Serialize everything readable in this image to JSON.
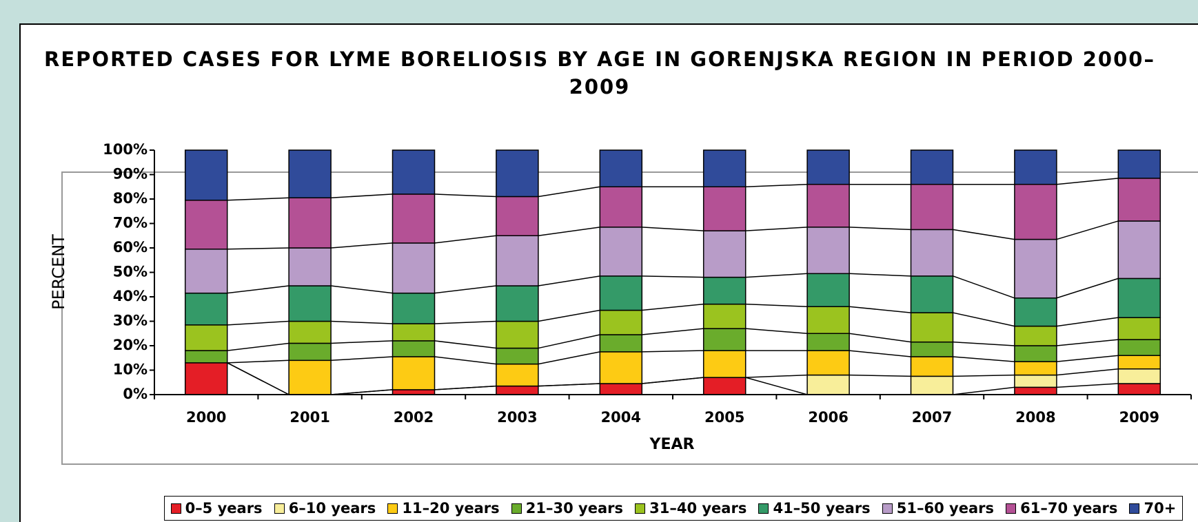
{
  "chart_data": {
    "type": "stacked-bar",
    "title": "REPORTED CASES FOR LYME BORELIOSIS BY AGE IN GORENJSKA REGION IN PERIOD 2000–2009",
    "x_label": "YEAR",
    "y_label": "PERCENT",
    "categories": [
      "2000",
      "2001",
      "2002",
      "2003",
      "2004",
      "2005",
      "2006",
      "2007",
      "2008",
      "2009"
    ],
    "series": [
      {
        "name": "0–5 years",
        "color": "#e41e26",
        "values": [
          13,
          0,
          2,
          3.5,
          4.5,
          7,
          0,
          0,
          3,
          4.5
        ]
      },
      {
        "name": "6–10 years",
        "color": "#f8ee9a",
        "values": [
          0,
          0,
          0,
          0,
          0,
          0,
          8,
          7.5,
          5,
          6
        ]
      },
      {
        "name": "11–20 years",
        "color": "#fdcb14",
        "values": [
          0,
          14,
          13.5,
          9,
          13,
          11,
          10,
          8,
          5.5,
          5.5
        ]
      },
      {
        "name": "21–30 years",
        "color": "#6aac2c",
        "values": [
          5,
          7,
          6.5,
          6.5,
          7,
          9,
          7,
          6,
          6.5,
          6.5
        ]
      },
      {
        "name": "31–40 years",
        "color": "#9bc31f",
        "values": [
          10.5,
          9,
          7,
          11,
          10,
          10,
          11,
          12,
          8,
          9
        ]
      },
      {
        "name": "41–50 years",
        "color": "#349a68",
        "values": [
          13,
          14.5,
          12.5,
          14.5,
          14,
          11,
          13.5,
          15,
          11.5,
          16
        ]
      },
      {
        "name": "51–60 years",
        "color": "#b89cc8",
        "values": [
          18,
          15.5,
          20.5,
          20.5,
          20,
          19,
          19,
          19,
          24,
          23.5
        ]
      },
      {
        "name": "61–70 years",
        "color": "#b45195",
        "values": [
          20,
          20.5,
          20,
          16,
          16.5,
          18,
          17.5,
          18.5,
          22.5,
          17.5
        ]
      },
      {
        "name": "70+",
        "color": "#304b9a",
        "values": [
          20.5,
          19.5,
          18,
          19,
          15,
          15,
          14,
          14,
          14,
          11.5
        ]
      }
    ],
    "ylim": [
      0,
      100
    ],
    "yticks": [
      {
        "value": 0,
        "label": "0%"
      },
      {
        "value": 10,
        "label": "10%"
      },
      {
        "value": 20,
        "label": "20%"
      },
      {
        "value": 30,
        "label": "30%"
      },
      {
        "value": 40,
        "label": "40%"
      },
      {
        "value": 50,
        "label": "50%"
      },
      {
        "value": 60,
        "label": "60%"
      },
      {
        "value": 70,
        "label": "70%"
      },
      {
        "value": 80,
        "label": "80%"
      },
      {
        "value": 90,
        "label": "90%"
      },
      {
        "value": 100,
        "label": "100%"
      }
    ],
    "legend": "bottom"
  }
}
